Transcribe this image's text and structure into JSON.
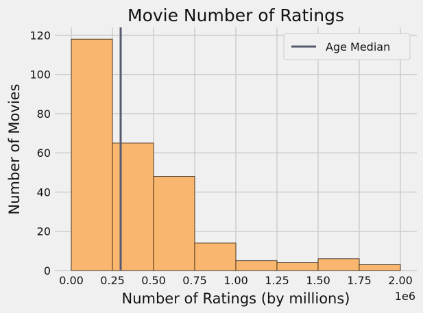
{
  "chart_data": {
    "type": "bar",
    "title": "Movie Number of Ratings",
    "xlabel": "Number of Ratings (by millions)",
    "ylabel": "Number of Movies",
    "x_scale_note": "1e6",
    "bins": [
      {
        "start": 0.0,
        "end": 0.25,
        "count": 118
      },
      {
        "start": 0.25,
        "end": 0.5,
        "count": 65
      },
      {
        "start": 0.5,
        "end": 0.75,
        "count": 48
      },
      {
        "start": 0.75,
        "end": 1.0,
        "count": 14
      },
      {
        "start": 1.0,
        "end": 1.25,
        "count": 5
      },
      {
        "start": 1.25,
        "end": 1.5,
        "count": 4
      },
      {
        "start": 1.5,
        "end": 1.75,
        "count": 6
      },
      {
        "start": 1.75,
        "end": 2.0,
        "count": 3
      }
    ],
    "median_line": {
      "name": "Age Median",
      "x": 0.3
    },
    "xlim": [
      -0.1,
      2.1
    ],
    "ylim": [
      0,
      124
    ],
    "xticks": [
      "0.00",
      "0.25",
      "0.50",
      "0.75",
      "1.00",
      "1.25",
      "1.50",
      "1.75",
      "2.00"
    ],
    "xtick_values": [
      0,
      0.25,
      0.5,
      0.75,
      1.0,
      1.25,
      1.5,
      1.75,
      2.0
    ],
    "yticks": [
      "0",
      "20",
      "40",
      "60",
      "80",
      "100",
      "120"
    ],
    "ytick_values": [
      0,
      20,
      40,
      60,
      80,
      100,
      120
    ],
    "grid": true,
    "legend_position": "top-right",
    "colors": {
      "bar_fill": "#f9b66f",
      "bar_edge": "#2b1a0a",
      "median_line": "#555a70",
      "background": "#f0f0f0",
      "grid": "#cbcbcb"
    }
  }
}
